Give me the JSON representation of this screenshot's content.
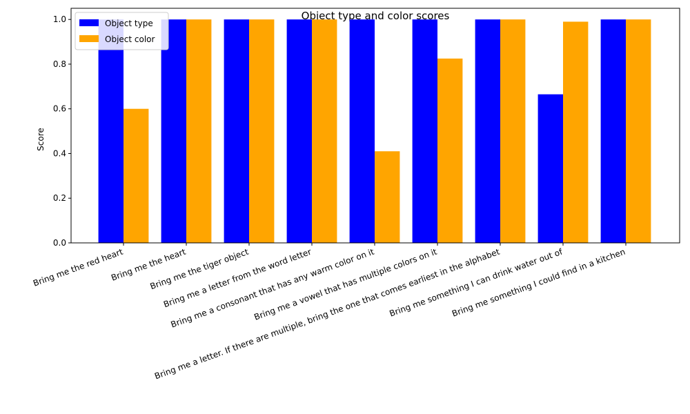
{
  "chart_data": {
    "type": "bar",
    "title": "Object type and color scores",
    "xlabel": "",
    "ylabel": "Score",
    "ylim": [
      0,
      1.05
    ],
    "yticks": [
      0.0,
      0.2,
      0.4,
      0.6,
      0.8,
      1.0
    ],
    "ytick_labels": [
      "0.0",
      "0.2",
      "0.4",
      "0.6",
      "0.8",
      "1.0"
    ],
    "grid": false,
    "legend_position": "top-left",
    "categories": [
      "Bring me the red heart",
      "Bring me the heart",
      "Bring me the tiger object",
      "Bring me a letter from the word letter",
      "Bring me a consonant that has any warm color on it",
      "Bring me a vowel that has multiple colors on it",
      "Bring me a letter. If there are multiple, bring the one that comes earliest in the alphabet",
      "Bring me something I can drink water out of",
      "Bring me something I could find in a kitchen"
    ],
    "series": [
      {
        "name": "Object type",
        "color": "#0000ff",
        "values": [
          1.0,
          1.0,
          1.0,
          1.0,
          1.0,
          1.0,
          1.0,
          0.665,
          1.0
        ]
      },
      {
        "name": "Object color",
        "color": "#ffa500",
        "values": [
          0.6,
          1.0,
          1.0,
          1.0,
          0.41,
          0.825,
          1.0,
          0.99,
          1.0
        ]
      }
    ]
  }
}
